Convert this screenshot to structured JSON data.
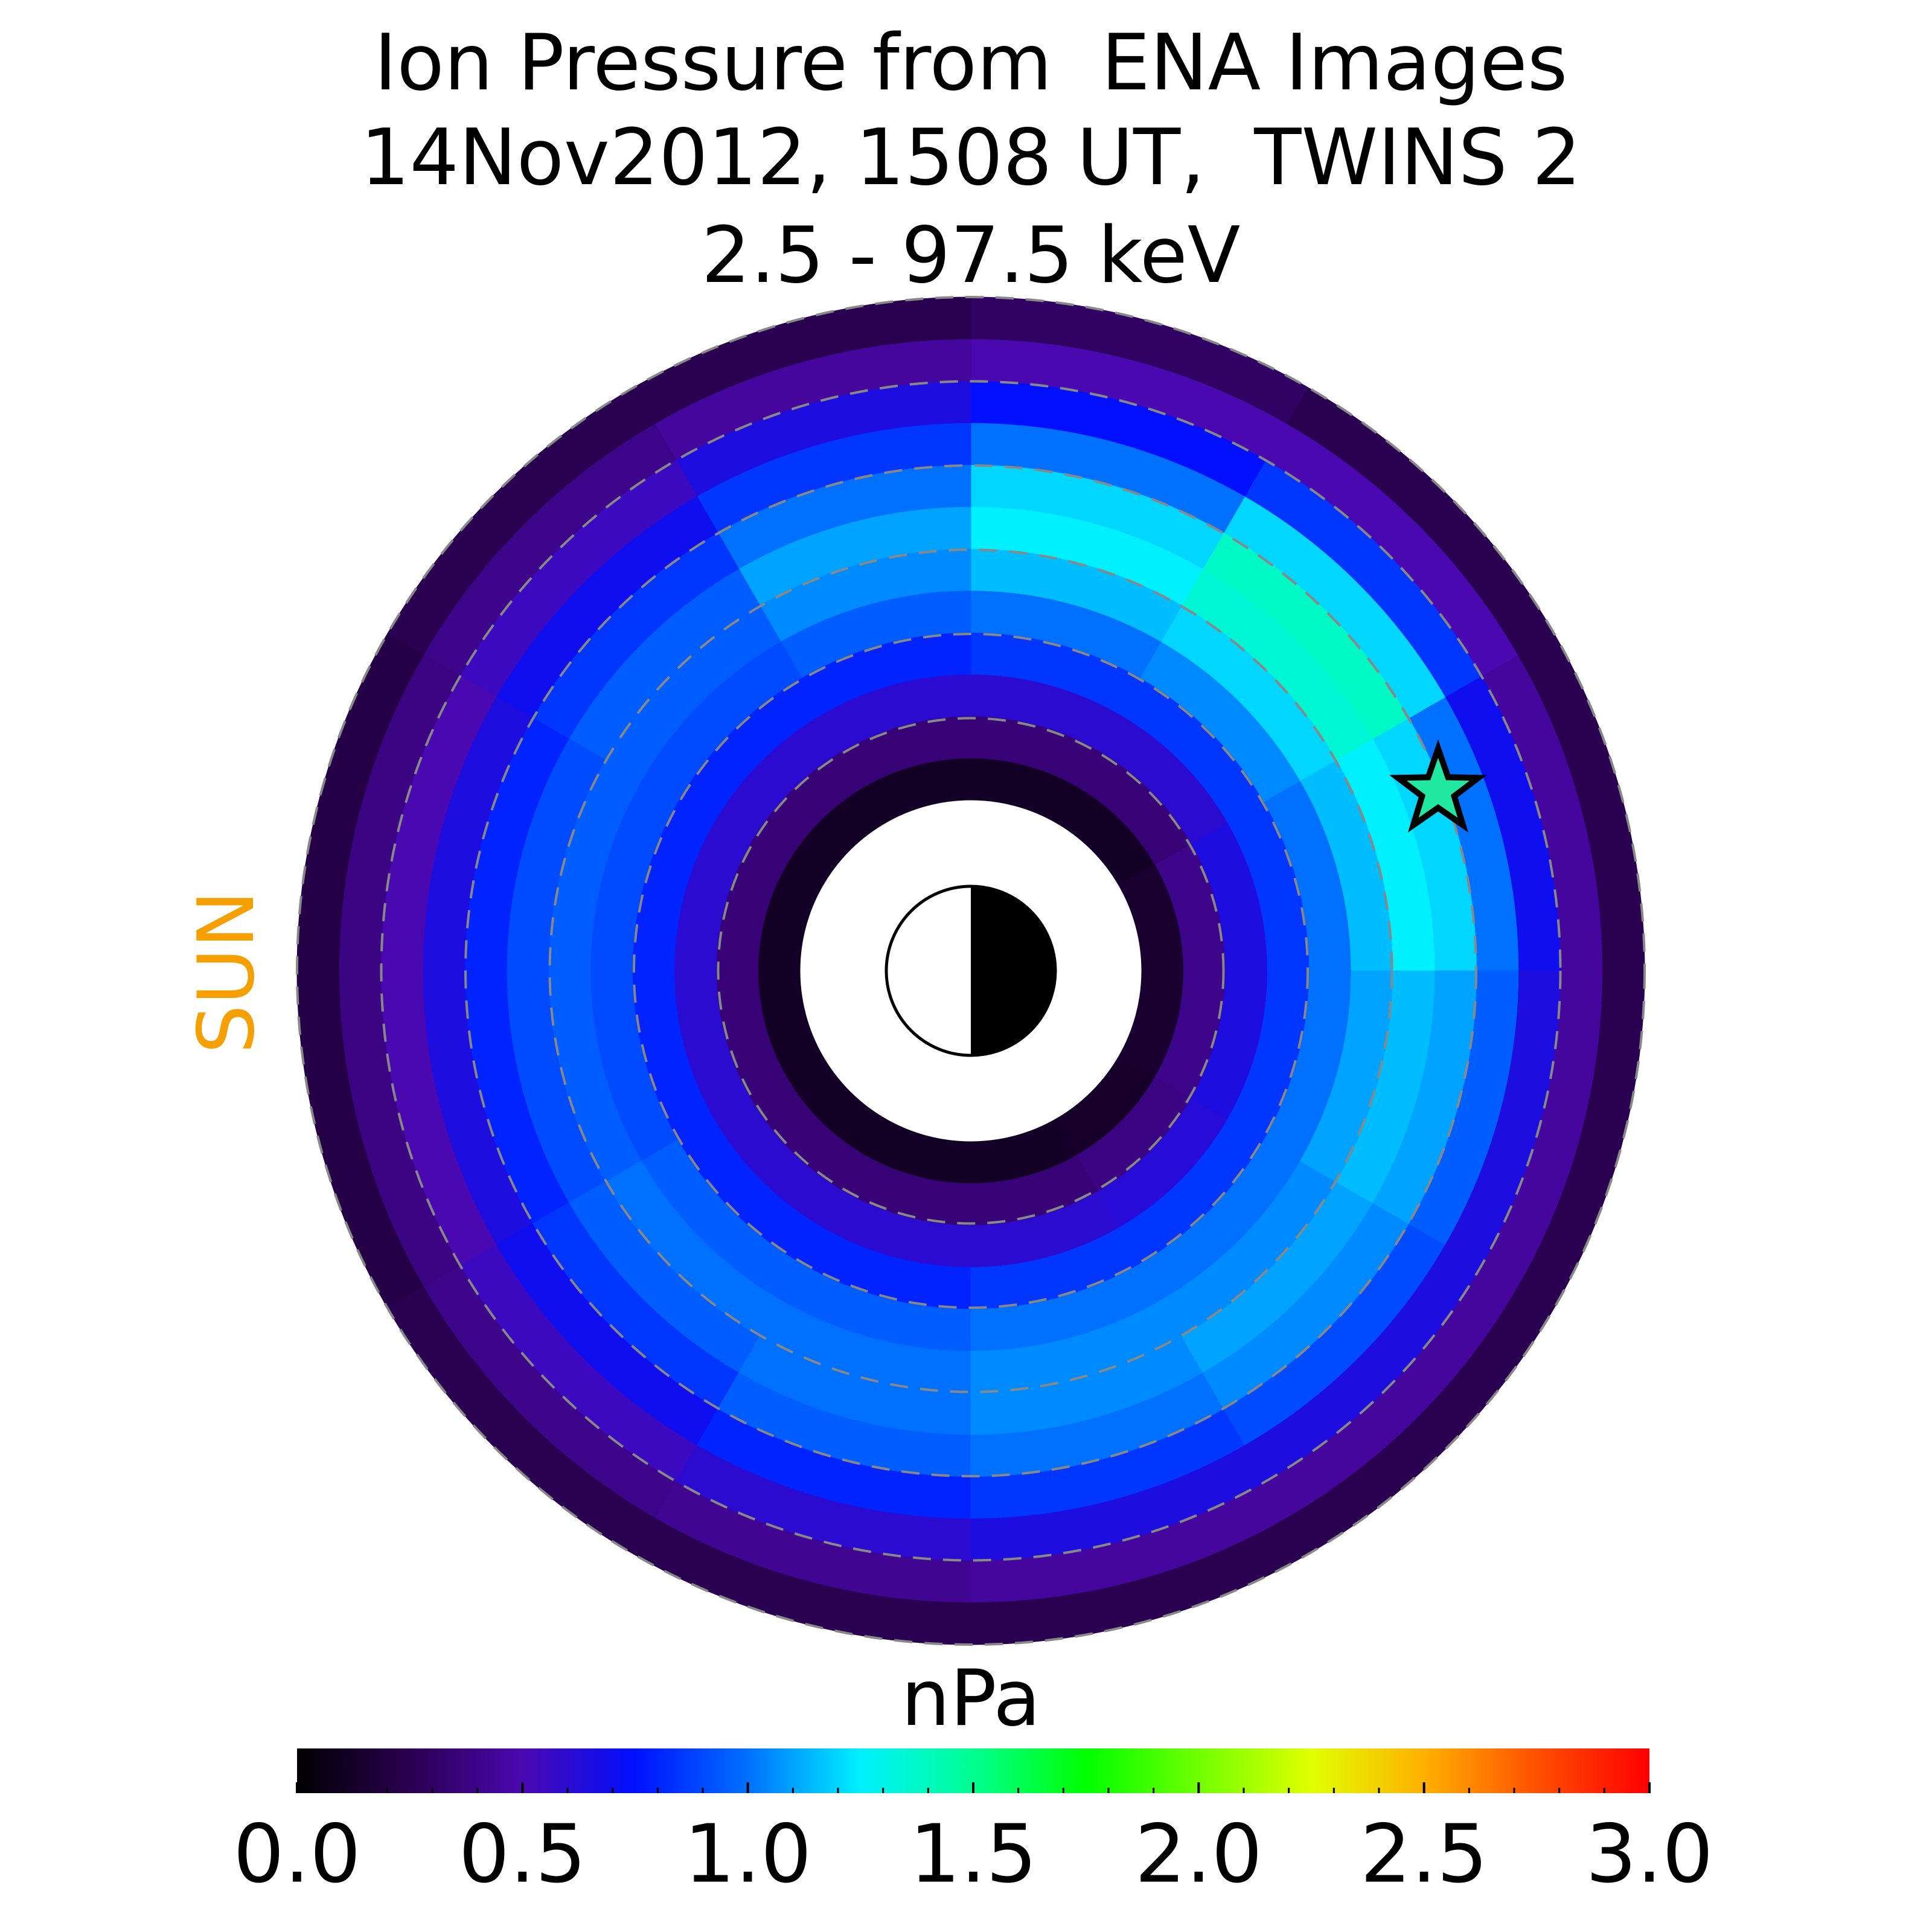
{
  "chart_data": {
    "type": "polar-heatmap",
    "title": [
      "Ion Pressure from  ENA Images",
      "14Nov2012, 1508 UT,  TWINS 2",
      "2.5 - 97.5 keV"
    ],
    "sun_label": "SUN",
    "colorbar_label": "nPa",
    "clim": [
      0,
      3
    ],
    "cticks": [
      {
        "value": 0,
        "label": "0.0"
      },
      {
        "value": 0.5,
        "label": "0.5"
      },
      {
        "value": 1,
        "label": "1.0"
      },
      {
        "value": 1.5,
        "label": "1.5"
      },
      {
        "value": 2,
        "label": "2.0"
      },
      {
        "value": 2.5,
        "label": "2.5"
      },
      {
        "value": 3,
        "label": "3.0"
      }
    ],
    "colormap": [
      "#000000",
      "#2a0050",
      "#4a08b0",
      "#0010ff",
      "#0070ff",
      "#00f0ff",
      "#00ff90",
      "#00ff00",
      "#70ff00",
      "#e0ff00",
      "#ffb000",
      "#ff5000",
      "#ff0000"
    ],
    "values": [
      [
        0.15,
        0.4,
        0.65,
        0.85,
        1.0,
        1.15,
        1.25,
        1.2,
        1.0,
        0.7,
        0.45,
        0.25
      ],
      [
        0.12,
        0.35,
        0.6,
        0.85,
        1.05,
        1.2,
        1.35,
        1.38,
        1.2,
        0.85,
        0.5,
        0.25
      ],
      [
        0.12,
        0.35,
        0.6,
        0.85,
        1.0,
        1.15,
        1.25,
        1.2,
        1.0,
        0.75,
        0.5,
        0.3
      ],
      [
        0.12,
        0.35,
        0.6,
        0.8,
        0.95,
        1.05,
        1.1,
        1.0,
        0.85,
        0.65,
        0.45,
        0.25
      ],
      [
        0.12,
        0.35,
        0.6,
        0.8,
        0.9,
        0.95,
        0.95,
        0.85,
        0.7,
        0.55,
        0.4,
        0.25
      ],
      [
        0.12,
        0.35,
        0.6,
        0.8,
        0.9,
        0.95,
        0.9,
        0.8,
        0.65,
        0.5,
        0.38,
        0.22
      ],
      [
        0.12,
        0.35,
        0.6,
        0.8,
        0.9,
        0.95,
        0.9,
        0.8,
        0.65,
        0.5,
        0.38,
        0.22
      ],
      [
        0.12,
        0.35,
        0.6,
        0.8,
        0.95,
        1.0,
        0.95,
        0.85,
        0.7,
        0.55,
        0.4,
        0.25
      ],
      [
        0.12,
        0.35,
        0.6,
        0.8,
        0.95,
        1.0,
        1.0,
        0.95,
        0.8,
        0.6,
        0.42,
        0.25
      ],
      [
        0.12,
        0.35,
        0.6,
        0.85,
        1.0,
        1.05,
        1.05,
        1.0,
        0.85,
        0.65,
        0.45,
        0.25
      ],
      [
        0.13,
        0.38,
        0.62,
        0.85,
        1.0,
        1.05,
        1.1,
        1.05,
        0.9,
        0.65,
        0.45,
        0.25
      ],
      [
        0.15,
        0.4,
        0.65,
        0.85,
        1.0,
        1.1,
        1.15,
        1.1,
        0.95,
        0.65,
        0.45,
        0.25
      ]
    ]
  }
}
